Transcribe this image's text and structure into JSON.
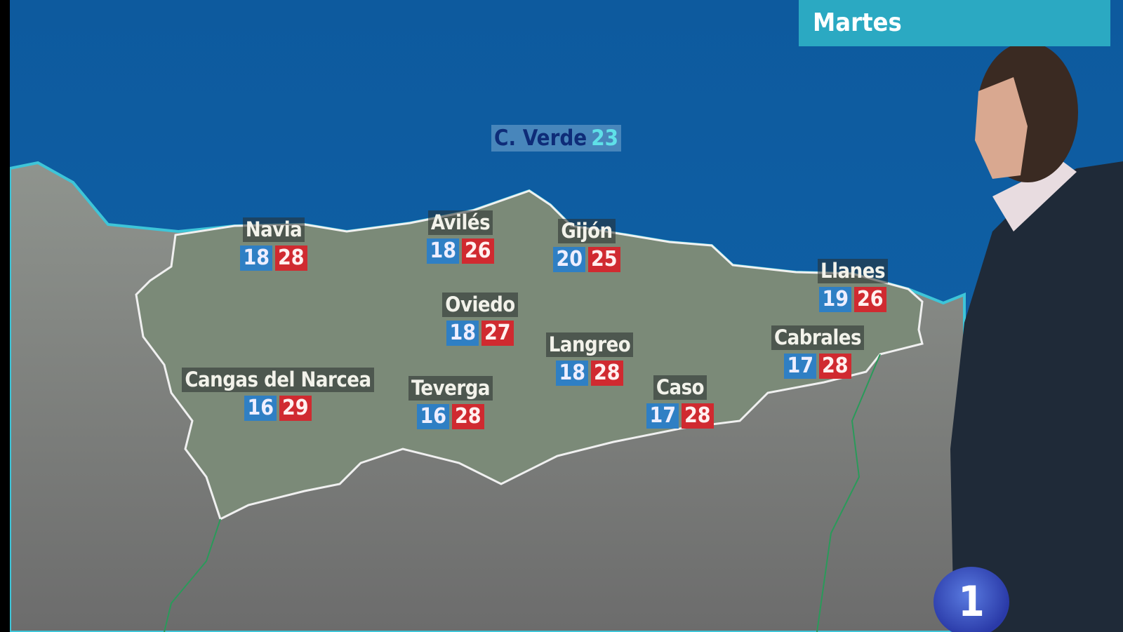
{
  "day_label": "Martes",
  "sea_buoy": {
    "name": "C. Verde",
    "value": "23"
  },
  "cities": [
    {
      "name": "Navia",
      "min": "18",
      "max": "28"
    },
    {
      "name": "Avilés",
      "min": "18",
      "max": "26"
    },
    {
      "name": "Gijón",
      "min": "20",
      "max": "25"
    },
    {
      "name": "Oviedo",
      "min": "18",
      "max": "27"
    },
    {
      "name": "Langreo",
      "min": "18",
      "max": "28"
    },
    {
      "name": "Cangas del Narcea",
      "min": "16",
      "max": "29"
    },
    {
      "name": "Teverga",
      "min": "16",
      "max": "28"
    },
    {
      "name": "Caso",
      "min": "17",
      "max": "28"
    },
    {
      "name": "Llanes",
      "min": "19",
      "max": "26"
    },
    {
      "name": "Cabrales",
      "min": "17",
      "max": "28"
    }
  ],
  "channel_logo": "1",
  "colors": {
    "min_temp": "#2f7fc4",
    "max_temp": "#d02a30",
    "day_banner": "#2ba9c2",
    "sea": "#0f5fa0"
  }
}
